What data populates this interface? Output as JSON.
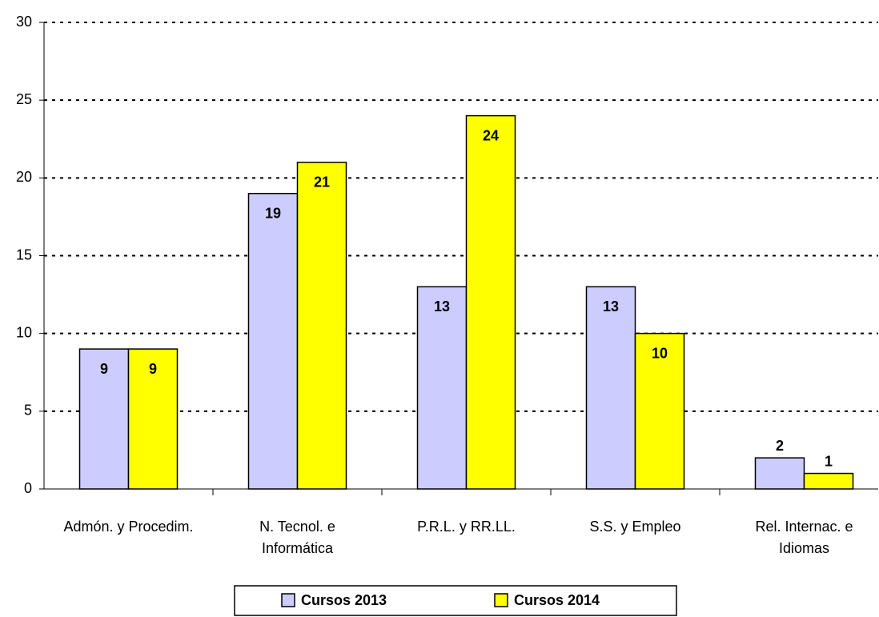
{
  "chart_data": {
    "type": "bar",
    "categories": [
      "Admón. y Procedim.",
      "N. Tecnol. e\nInformática",
      "P.R.L. y RR.LL.",
      "S.S. y Empleo",
      "Rel. Internac. e\nIdiomas"
    ],
    "series": [
      {
        "name": "Cursos 2013",
        "color": "#ccccff",
        "values": [
          9,
          19,
          13,
          13,
          2
        ]
      },
      {
        "name": "Cursos 2014",
        "color": "#ffff00",
        "values": [
          9,
          21,
          24,
          10,
          1
        ]
      }
    ],
    "ylim": [
      0,
      30
    ],
    "yticks": [
      0,
      5,
      10,
      15,
      20,
      25,
      30
    ],
    "grid": true,
    "legend": "bottom"
  }
}
